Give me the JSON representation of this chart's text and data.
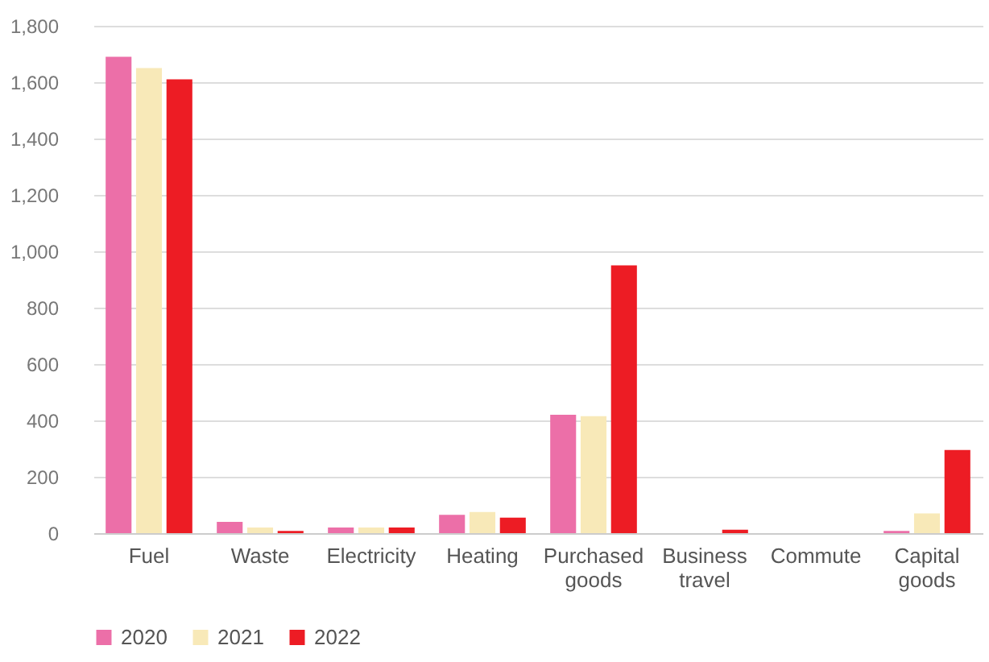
{
  "chart_data": {
    "type": "bar",
    "categories": [
      "Fuel",
      "Waste",
      "Electricity",
      "Heating",
      "Purchased goods",
      "Business travel",
      "Commute",
      "Capital goods"
    ],
    "series": [
      {
        "name": "2020",
        "color": "#ec6fa8",
        "values": [
          1690,
          40,
          20,
          65,
          420,
          0,
          0,
          8
        ]
      },
      {
        "name": "2021",
        "color": "#f8e9b8",
        "values": [
          1650,
          20,
          20,
          75,
          415,
          0,
          0,
          70
        ]
      },
      {
        "name": "2022",
        "color": "#ed1c24",
        "values": [
          1610,
          8,
          20,
          55,
          950,
          12,
          0,
          295
        ]
      }
    ],
    "ylim": [
      0,
      1800
    ],
    "yticks": [
      0,
      200,
      400,
      600,
      800,
      {
        "value": 1000,
        "label": "1,000"
      },
      {
        "value": 1200,
        "label": "1,200"
      },
      {
        "value": 1400,
        "label": "1,400"
      },
      {
        "value": 1600,
        "label": "1,600"
      },
      {
        "value": 1800,
        "label": "1,800"
      }
    ],
    "grid": "y",
    "legend": "bottom"
  }
}
